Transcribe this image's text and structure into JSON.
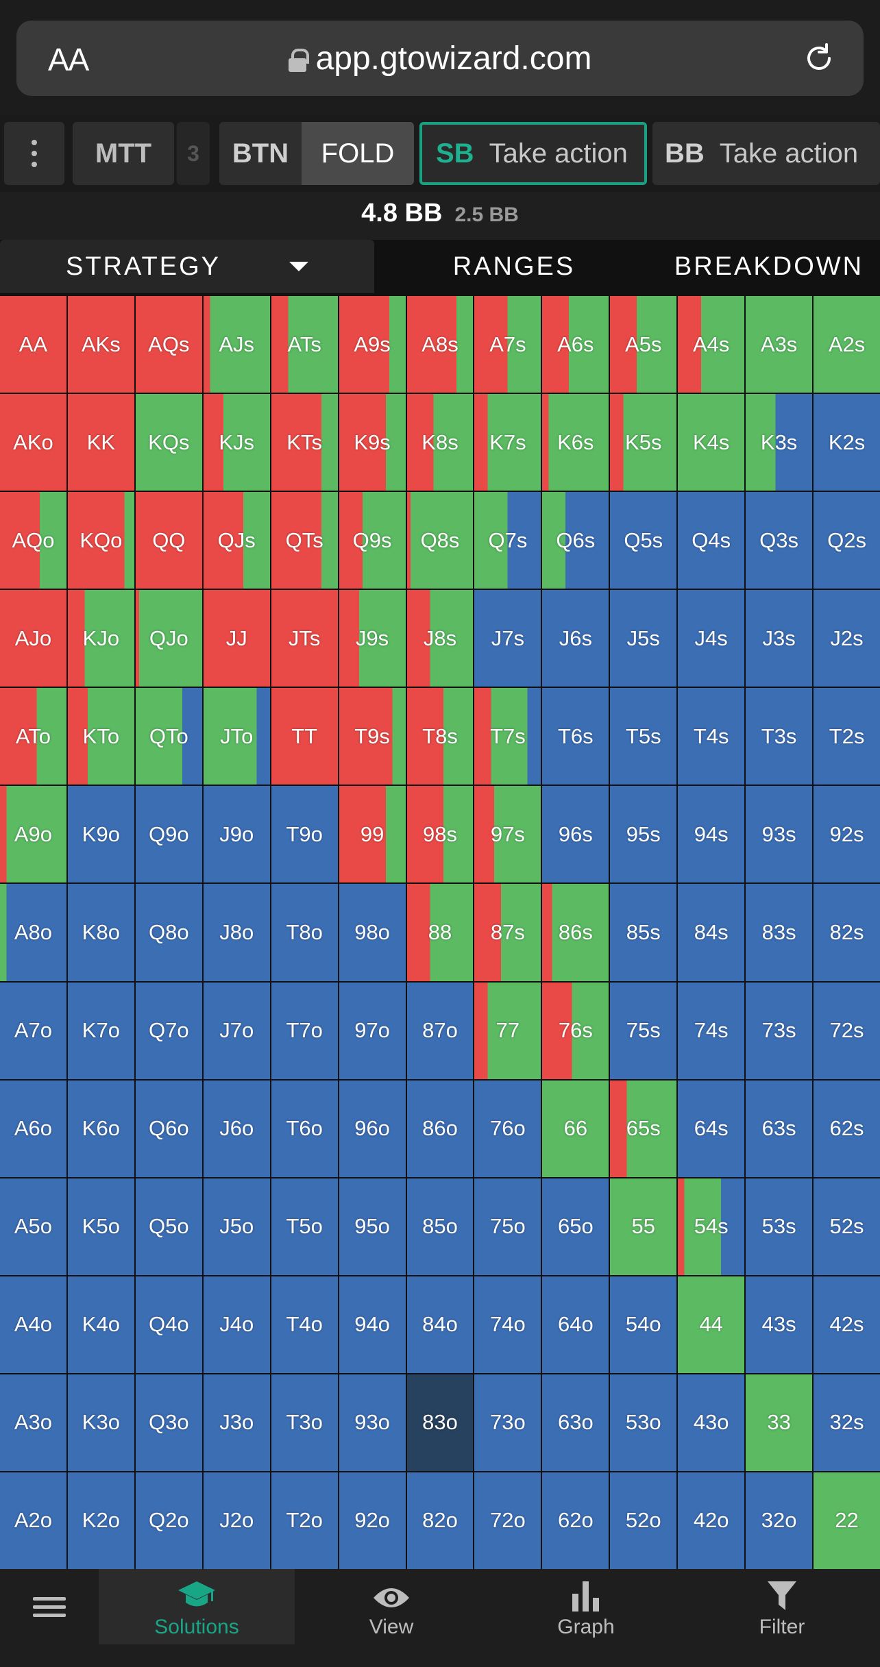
{
  "browser": {
    "aa_label": "AA",
    "url": "app.gtowizard.com"
  },
  "actions": {
    "mtt_label": "MTT",
    "mtt_tail": "3",
    "btn": {
      "position": "BTN",
      "action": "FOLD"
    },
    "sb": {
      "position": "SB",
      "action": "Take action"
    },
    "bb": {
      "position": "BB",
      "action": "Take action"
    }
  },
  "pot": {
    "main": "4.8 BB",
    "sub": "2.5 BB"
  },
  "tabs": {
    "strategy": "STRATEGY",
    "ranges": "RANGES",
    "breakdown": "BREAKDOWN"
  },
  "colors": {
    "raise": "#e94a47",
    "call": "#5bba62",
    "fold": "#3c6eb4",
    "selected": "#26425f",
    "accent": "#18a686"
  },
  "hands": [
    [
      "AA",
      "AKs",
      "AQs",
      "AJs",
      "ATs",
      "A9s",
      "A8s",
      "A7s",
      "A6s",
      "A5s",
      "A4s",
      "A3s",
      "A2s"
    ],
    [
      "AKo",
      "KK",
      "KQs",
      "KJs",
      "KTs",
      "K9s",
      "K8s",
      "K7s",
      "K6s",
      "K5s",
      "K4s",
      "K3s",
      "K2s"
    ],
    [
      "AQo",
      "KQo",
      "QQ",
      "QJs",
      "QTs",
      "Q9s",
      "Q8s",
      "Q7s",
      "Q6s",
      "Q5s",
      "Q4s",
      "Q3s",
      "Q2s"
    ],
    [
      "AJo",
      "KJo",
      "QJo",
      "JJ",
      "JTs",
      "J9s",
      "J8s",
      "J7s",
      "J6s",
      "J5s",
      "J4s",
      "J3s",
      "J2s"
    ],
    [
      "ATo",
      "KTo",
      "QTo",
      "JTo",
      "TT",
      "T9s",
      "T8s",
      "T7s",
      "T6s",
      "T5s",
      "T4s",
      "T3s",
      "T2s"
    ],
    [
      "A9o",
      "K9o",
      "Q9o",
      "J9o",
      "T9o",
      "99",
      "98s",
      "97s",
      "96s",
      "95s",
      "94s",
      "93s",
      "92s"
    ],
    [
      "A8o",
      "K8o",
      "Q8o",
      "J8o",
      "T8o",
      "98o",
      "88",
      "87s",
      "86s",
      "85s",
      "84s",
      "83s",
      "82s"
    ],
    [
      "A7o",
      "K7o",
      "Q7o",
      "J7o",
      "T7o",
      "97o",
      "87o",
      "77",
      "76s",
      "75s",
      "74s",
      "73s",
      "72s"
    ],
    [
      "A6o",
      "K6o",
      "Q6o",
      "J6o",
      "T6o",
      "96o",
      "86o",
      "76o",
      "66",
      "65s",
      "64s",
      "63s",
      "62s"
    ],
    [
      "A5o",
      "K5o",
      "Q5o",
      "J5o",
      "T5o",
      "95o",
      "85o",
      "75o",
      "65o",
      "55",
      "54s",
      "53s",
      "52s"
    ],
    [
      "A4o",
      "K4o",
      "Q4o",
      "J4o",
      "T4o",
      "94o",
      "84o",
      "74o",
      "64o",
      "54o",
      "44",
      "43s",
      "42s"
    ],
    [
      "A3o",
      "K3o",
      "Q3o",
      "J3o",
      "T3o",
      "93o",
      "83o",
      "73o",
      "63o",
      "53o",
      "43o",
      "33",
      "32s"
    ],
    [
      "A2o",
      "K2o",
      "Q2o",
      "J2o",
      "T2o",
      "92o",
      "82o",
      "72o",
      "62o",
      "52o",
      "42o",
      "32o",
      "22"
    ]
  ],
  "strategy": {
    "AA": [
      1,
      0,
      0
    ],
    "AKs": [
      1,
      0,
      0
    ],
    "AQs": [
      1,
      0,
      0
    ],
    "AJs": [
      0.1,
      0.9,
      0
    ],
    "ATs": [
      0.25,
      0.75,
      0
    ],
    "A9s": [
      0.75,
      0.25,
      0
    ],
    "A8s": [
      0.75,
      0.25,
      0
    ],
    "A7s": [
      0.5,
      0.5,
      0
    ],
    "A6s": [
      0.4,
      0.6,
      0
    ],
    "A5s": [
      0.4,
      0.6,
      0
    ],
    "A4s": [
      0.35,
      0.65,
      0
    ],
    "A3s": [
      0,
      1,
      0
    ],
    "A2s": [
      0,
      1,
      0
    ],
    "AKo": [
      1,
      0,
      0
    ],
    "KK": [
      1,
      0,
      0
    ],
    "KQs": [
      0,
      1,
      0
    ],
    "KJs": [
      0.3,
      0.7,
      0
    ],
    "KTs": [
      0.75,
      0.25,
      0
    ],
    "K9s": [
      0.7,
      0.3,
      0
    ],
    "K8s": [
      0.4,
      0.6,
      0
    ],
    "K7s": [
      0.2,
      0.8,
      0
    ],
    "K6s": [
      0.1,
      0.9,
      0
    ],
    "K5s": [
      0.2,
      0.8,
      0
    ],
    "K4s": [
      0,
      1,
      0
    ],
    "K3s": [
      0,
      0.45,
      0.55
    ],
    "K2s": [
      0,
      0,
      1
    ],
    "AQo": [
      0.6,
      0.4,
      0
    ],
    "KQo": [
      0.85,
      0.15,
      0
    ],
    "QQ": [
      1,
      0,
      0
    ],
    "QJs": [
      0.6,
      0.4,
      0
    ],
    "QTs": [
      0.75,
      0.25,
      0
    ],
    "Q9s": [
      0.35,
      0.65,
      0
    ],
    "Q8s": [
      0.05,
      0.95,
      0
    ],
    "Q7s": [
      0,
      0.5,
      0.5
    ],
    "Q6s": [
      0,
      0.35,
      0.65
    ],
    "Q5s": [
      0,
      0,
      1
    ],
    "Q4s": [
      0,
      0,
      1
    ],
    "Q3s": [
      0,
      0,
      1
    ],
    "Q2s": [
      0,
      0,
      1
    ],
    "AJo": [
      1,
      0,
      0
    ],
    "KJo": [
      0.25,
      0.75,
      0
    ],
    "QJo": [
      0.05,
      0.95,
      0
    ],
    "JJ": [
      1,
      0,
      0
    ],
    "JTs": [
      1,
      0,
      0
    ],
    "J9s": [
      0.3,
      0.7,
      0
    ],
    "J8s": [
      0.35,
      0.65,
      0
    ],
    "J7s": [
      0,
      0,
      1
    ],
    "J6s": [
      0,
      0,
      1
    ],
    "J5s": [
      0,
      0,
      1
    ],
    "J4s": [
      0,
      0,
      1
    ],
    "J3s": [
      0,
      0,
      1
    ],
    "J2s": [
      0,
      0,
      1
    ],
    "ATo": [
      0.55,
      0.45,
      0
    ],
    "KTo": [
      0.3,
      0.7,
      0
    ],
    "QTo": [
      0,
      0.7,
      0.3
    ],
    "JTo": [
      0,
      0.8,
      0.2
    ],
    "TT": [
      1,
      0,
      0
    ],
    "T9s": [
      0.8,
      0.2,
      0
    ],
    "T8s": [
      0.55,
      0.45,
      0
    ],
    "T7s": [
      0.25,
      0.55,
      0.2
    ],
    "T6s": [
      0,
      0,
      1
    ],
    "T5s": [
      0,
      0,
      1
    ],
    "T4s": [
      0,
      0,
      1
    ],
    "T3s": [
      0,
      0,
      1
    ],
    "T2s": [
      0,
      0,
      1
    ],
    "A9o": [
      0.1,
      0.9,
      0
    ],
    "K9o": [
      0,
      0,
      1
    ],
    "Q9o": [
      0,
      0,
      1
    ],
    "J9o": [
      0,
      0,
      1
    ],
    "T9o": [
      0,
      0,
      1
    ],
    "99": [
      0.7,
      0.3,
      0
    ],
    "98s": [
      0.55,
      0.45,
      0
    ],
    "97s": [
      0.3,
      0.7,
      0
    ],
    "96s": [
      0,
      0,
      1
    ],
    "95s": [
      0,
      0,
      1
    ],
    "94s": [
      0,
      0,
      1
    ],
    "93s": [
      0,
      0,
      1
    ],
    "92s": [
      0,
      0,
      1
    ],
    "A8o": [
      0,
      0.1,
      0.9
    ],
    "K8o": [
      0,
      0,
      1
    ],
    "Q8o": [
      0,
      0,
      1
    ],
    "J8o": [
      0,
      0,
      1
    ],
    "T8o": [
      0,
      0,
      1
    ],
    "98o": [
      0,
      0,
      1
    ],
    "88": [
      0.35,
      0.65,
      0
    ],
    "87s": [
      0.4,
      0.6,
      0
    ],
    "86s": [
      0.15,
      0.85,
      0
    ],
    "85s": [
      0,
      0,
      1
    ],
    "84s": [
      0,
      0,
      1
    ],
    "83s": [
      0,
      0,
      1
    ],
    "82s": [
      0,
      0,
      1
    ],
    "A7o": [
      0,
      0,
      1
    ],
    "K7o": [
      0,
      0,
      1
    ],
    "Q7o": [
      0,
      0,
      1
    ],
    "J7o": [
      0,
      0,
      1
    ],
    "T7o": [
      0,
      0,
      1
    ],
    "97o": [
      0,
      0,
      1
    ],
    "87o": [
      0,
      0,
      1
    ],
    "77": [
      0.2,
      0.8,
      0
    ],
    "76s": [
      0.45,
      0.55,
      0
    ],
    "75s": [
      0,
      0,
      1
    ],
    "74s": [
      0,
      0,
      1
    ],
    "73s": [
      0,
      0,
      1
    ],
    "72s": [
      0,
      0,
      1
    ],
    "A6o": [
      0,
      0,
      1
    ],
    "K6o": [
      0,
      0,
      1
    ],
    "Q6o": [
      0,
      0,
      1
    ],
    "J6o": [
      0,
      0,
      1
    ],
    "T6o": [
      0,
      0,
      1
    ],
    "96o": [
      0,
      0,
      1
    ],
    "86o": [
      0,
      0,
      1
    ],
    "76o": [
      0,
      0,
      1
    ],
    "66": [
      0,
      1,
      0
    ],
    "65s": [
      0.25,
      0.75,
      0
    ],
    "64s": [
      0,
      0,
      1
    ],
    "63s": [
      0,
      0,
      1
    ],
    "62s": [
      0,
      0,
      1
    ],
    "A5o": [
      0,
      0,
      1
    ],
    "K5o": [
      0,
      0,
      1
    ],
    "Q5o": [
      0,
      0,
      1
    ],
    "J5o": [
      0,
      0,
      1
    ],
    "T5o": [
      0,
      0,
      1
    ],
    "95o": [
      0,
      0,
      1
    ],
    "85o": [
      0,
      0,
      1
    ],
    "75o": [
      0,
      0,
      1
    ],
    "65o": [
      0,
      0,
      1
    ],
    "55": [
      0,
      1,
      0
    ],
    "54s": [
      0.1,
      0.55,
      0.35
    ],
    "53s": [
      0,
      0,
      1
    ],
    "52s": [
      0,
      0,
      1
    ],
    "A4o": [
      0,
      0,
      1
    ],
    "K4o": [
      0,
      0,
      1
    ],
    "Q4o": [
      0,
      0,
      1
    ],
    "J4o": [
      0,
      0,
      1
    ],
    "T4o": [
      0,
      0,
      1
    ],
    "94o": [
      0,
      0,
      1
    ],
    "84o": [
      0,
      0,
      1
    ],
    "74o": [
      0,
      0,
      1
    ],
    "64o": [
      0,
      0,
      1
    ],
    "54o": [
      0,
      0,
      1
    ],
    "44": [
      0,
      1,
      0
    ],
    "43s": [
      0,
      0,
      1
    ],
    "42s": [
      0,
      0,
      1
    ],
    "A3o": [
      0,
      0,
      1
    ],
    "K3o": [
      0,
      0,
      1
    ],
    "Q3o": [
      0,
      0,
      1
    ],
    "J3o": [
      0,
      0,
      1
    ],
    "T3o": [
      0,
      0,
      1
    ],
    "93o": [
      0,
      0,
      1
    ],
    "83o": [
      0,
      0,
      1
    ],
    "73o": [
      0,
      0,
      1
    ],
    "63o": [
      0,
      0,
      1
    ],
    "53o": [
      0,
      0,
      1
    ],
    "43o": [
      0,
      0,
      1
    ],
    "33": [
      0,
      1,
      0
    ],
    "32s": [
      0,
      0,
      1
    ],
    "A2o": [
      0,
      0,
      1
    ],
    "K2o": [
      0,
      0,
      1
    ],
    "Q2o": [
      0,
      0,
      1
    ],
    "J2o": [
      0,
      0,
      1
    ],
    "T2o": [
      0,
      0,
      1
    ],
    "92o": [
      0,
      0,
      1
    ],
    "82o": [
      0,
      0,
      1
    ],
    "72o": [
      0,
      0,
      1
    ],
    "62o": [
      0,
      0,
      1
    ],
    "52o": [
      0,
      0,
      1
    ],
    "42o": [
      0,
      0,
      1
    ],
    "32o": [
      0,
      0,
      1
    ],
    "22": [
      0,
      1,
      0
    ]
  },
  "selected_hand": "83o",
  "bottom_nav": {
    "solutions": "Solutions",
    "view": "View",
    "graph": "Graph",
    "filter": "Filter"
  }
}
